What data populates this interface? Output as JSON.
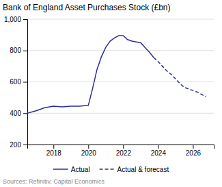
{
  "chart_data": {
    "type": "line",
    "title": "Bank of England Asset Purchases Stock (£bn)",
    "source": "Sources: Refinitiv, Capital Economics",
    "xlim": [
      2016.5,
      2027.2
    ],
    "xticks": [
      2018,
      2020,
      2022,
      2024,
      2026
    ],
    "ylim": [
      200,
      1000
    ],
    "yticks": [
      200,
      400,
      600,
      800,
      {
        "value": 1000,
        "label": "1,000"
      }
    ],
    "grid": "y",
    "legend": "bottom",
    "series": [
      {
        "name": "Actual",
        "color": "#2c2ca0",
        "line_style": "solid",
        "x": [
          2016.5,
          2017.0,
          2017.5,
          2018.0,
          2018.5,
          2019.0,
          2019.5,
          2020.0,
          2020.25,
          2020.5,
          2020.75,
          2021.0,
          2021.25,
          2021.5,
          2021.75,
          2022.0,
          2022.25,
          2022.5,
          2022.75,
          2023.0,
          2023.25,
          2023.5,
          2023.75
        ],
        "values": [
          400,
          415,
          435,
          445,
          440,
          445,
          445,
          450,
          560,
          680,
          760,
          820,
          860,
          880,
          895,
          895,
          870,
          860,
          855,
          850,
          820,
          790,
          755
        ]
      },
      {
        "name": "Actual & forecast",
        "color": "#2c2ca0",
        "line_style": "dashed",
        "x": [
          2023.75,
          2024.0,
          2024.25,
          2024.5,
          2024.75,
          2025.0,
          2025.25,
          2025.5,
          2025.75,
          2026.0,
          2026.25,
          2026.5,
          2026.75
        ],
        "values": [
          755,
          730,
          700,
          670,
          648,
          620,
          590,
          565,
          555,
          545,
          535,
          520,
          505
        ]
      }
    ]
  }
}
